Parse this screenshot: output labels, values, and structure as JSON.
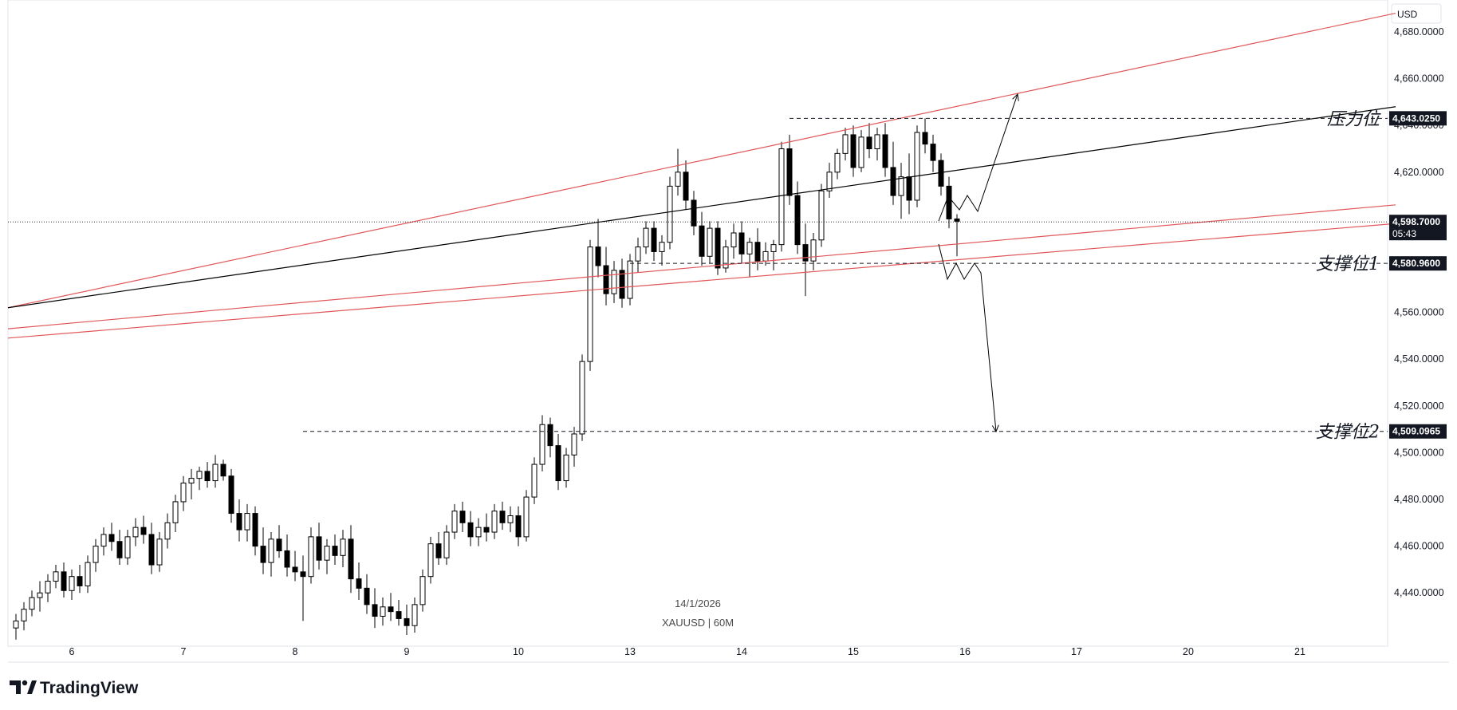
{
  "currency_label": "USD",
  "watermark": {
    "date": "14/1/2026",
    "symbol": "XAUUSD | 60M"
  },
  "brand": "TradingView",
  "chart_data": {
    "type": "candlestick",
    "symbol": "XAUUSD",
    "timeframe": "60M",
    "ylim": [
      4420,
      4690
    ],
    "y_ticks": [
      "4,440.0000",
      "4,460.0000",
      "4,480.0000",
      "4,500.0000",
      "4,520.0000",
      "4,540.0000",
      "4,560.0000",
      "4,580.0000",
      "4,600.0000",
      "4,620.0000",
      "4,640.0000",
      "4,660.0000",
      "4,680.0000"
    ],
    "y_tick_values": [
      4440,
      4460,
      4480,
      4500,
      4520,
      4540,
      4560,
      4580,
      4600,
      4620,
      4640,
      4660,
      4680
    ],
    "x_ticks": [
      "6",
      "7",
      "8",
      "9",
      "10",
      "13",
      "14",
      "15",
      "16",
      "17",
      "20",
      "21"
    ],
    "x_tick_index": [
      7,
      21,
      35,
      49,
      63,
      77,
      91,
      105,
      119,
      133,
      147,
      161
    ],
    "candles": [
      [
        4425,
        4431,
        4420,
        4428
      ],
      [
        4428,
        4436,
        4424,
        4433
      ],
      [
        4433,
        4441,
        4430,
        4438
      ],
      [
        4438,
        4445,
        4432,
        4440
      ],
      [
        4440,
        4448,
        4436,
        4445
      ],
      [
        4445,
        4452,
        4442,
        4449
      ],
      [
        4449,
        4453,
        4438,
        4441
      ],
      [
        4441,
        4450,
        4437,
        4447
      ],
      [
        4447,
        4452,
        4440,
        4443
      ],
      [
        4443,
        4456,
        4440,
        4453
      ],
      [
        4453,
        4463,
        4449,
        4460
      ],
      [
        4460,
        4468,
        4456,
        4465
      ],
      [
        4465,
        4470,
        4458,
        4462
      ],
      [
        4462,
        4467,
        4452,
        4455
      ],
      [
        4455,
        4467,
        4452,
        4464
      ],
      [
        4464,
        4472,
        4460,
        4468
      ],
      [
        4468,
        4473,
        4461,
        4465
      ],
      [
        4465,
        4470,
        4448,
        4452
      ],
      [
        4452,
        4466,
        4449,
        4463
      ],
      [
        4463,
        4474,
        4459,
        4470
      ],
      [
        4470,
        4482,
        4466,
        4479
      ],
      [
        4479,
        4490,
        4475,
        4487
      ],
      [
        4487,
        4493,
        4480,
        4489
      ],
      [
        4489,
        4494,
        4484,
        4492
      ],
      [
        4492,
        4496,
        4485,
        4488
      ],
      [
        4488,
        4499,
        4485,
        4495
      ],
      [
        4495,
        4497,
        4488,
        4490
      ],
      [
        4490,
        4493,
        4470,
        4474
      ],
      [
        4474,
        4480,
        4462,
        4467
      ],
      [
        4467,
        4478,
        4462,
        4474
      ],
      [
        4474,
        4477,
        4456,
        4460
      ],
      [
        4460,
        4468,
        4448,
        4453
      ],
      [
        4453,
        4466,
        4447,
        4463
      ],
      [
        4463,
        4469,
        4455,
        4458
      ],
      [
        4458,
        4465,
        4447,
        4451
      ],
      [
        4451,
        4458,
        4445,
        4449
      ],
      [
        4449,
        4456,
        4428,
        4447
      ],
      [
        4447,
        4468,
        4444,
        4464
      ],
      [
        4464,
        4470,
        4450,
        4454
      ],
      [
        4454,
        4463,
        4448,
        4460
      ],
      [
        4460,
        4465,
        4452,
        4456
      ],
      [
        4456,
        4467,
        4451,
        4463
      ],
      [
        4463,
        4469,
        4440,
        4446
      ],
      [
        4446,
        4453,
        4437,
        4442
      ],
      [
        4442,
        4448,
        4431,
        4435
      ],
      [
        4435,
        4442,
        4425,
        4430
      ],
      [
        4430,
        4438,
        4426,
        4434
      ],
      [
        4434,
        4440,
        4428,
        4432
      ],
      [
        4432,
        4437,
        4426,
        4429
      ],
      [
        4429,
        4435,
        4422,
        4426
      ],
      [
        4426,
        4438,
        4423,
        4435
      ],
      [
        4435,
        4450,
        4432,
        4447
      ],
      [
        4447,
        4464,
        4444,
        4461
      ],
      [
        4461,
        4466,
        4452,
        4455
      ],
      [
        4455,
        4469,
        4452,
        4466
      ],
      [
        4466,
        4478,
        4463,
        4475
      ],
      [
        4475,
        4479,
        4466,
        4470
      ],
      [
        4470,
        4475,
        4460,
        4464
      ],
      [
        4464,
        4472,
        4460,
        4468
      ],
      [
        4468,
        4474,
        4462,
        4466
      ],
      [
        4466,
        4478,
        4463,
        4475
      ],
      [
        4475,
        4479,
        4467,
        4470
      ],
      [
        4470,
        4477,
        4466,
        4473
      ],
      [
        4473,
        4477,
        4460,
        4464
      ],
      [
        4464,
        4484,
        4462,
        4481
      ],
      [
        4481,
        4498,
        4478,
        4495
      ],
      [
        4495,
        4516,
        4492,
        4512
      ],
      [
        4512,
        4515,
        4498,
        4503
      ],
      [
        4503,
        4508,
        4484,
        4488
      ],
      [
        4488,
        4502,
        4485,
        4499
      ],
      [
        4499,
        4511,
        4494,
        4508
      ],
      [
        4508,
        4542,
        4505,
        4539
      ],
      [
        4539,
        4591,
        4535,
        4588
      ],
      [
        4588,
        4600,
        4575,
        4580
      ],
      [
        4580,
        4588,
        4563,
        4568
      ],
      [
        4568,
        4582,
        4564,
        4578
      ],
      [
        4578,
        4583,
        4562,
        4566
      ],
      [
        4566,
        4585,
        4563,
        4582
      ],
      [
        4582,
        4592,
        4577,
        4588
      ],
      [
        4588,
        4599,
        4585,
        4596
      ],
      [
        4596,
        4599,
        4582,
        4586
      ],
      [
        4586,
        4593,
        4580,
        4590
      ],
      [
        4590,
        4618,
        4587,
        4614
      ],
      [
        4614,
        4630,
        4610,
        4620
      ],
      [
        4620,
        4625,
        4604,
        4608
      ],
      [
        4608,
        4612,
        4593,
        4597
      ],
      [
        4597,
        4603,
        4580,
        4584
      ],
      [
        4584,
        4599,
        4581,
        4596
      ],
      [
        4596,
        4599,
        4576,
        4579
      ],
      [
        4579,
        4591,
        4577,
        4588
      ],
      [
        4588,
        4598,
        4583,
        4594
      ],
      [
        4594,
        4599,
        4581,
        4585
      ],
      [
        4585,
        4592,
        4575,
        4590
      ],
      [
        4590,
        4596,
        4578,
        4582
      ],
      [
        4582,
        4590,
        4580,
        4586
      ],
      [
        4586,
        4591,
        4578,
        4589
      ],
      [
        4589,
        4633,
        4586,
        4630
      ],
      [
        4630,
        4636,
        4606,
        4610
      ],
      [
        4610,
        4616,
        4585,
        4589
      ],
      [
        4589,
        4598,
        4567,
        4582
      ],
      [
        4582,
        4594,
        4578,
        4591
      ],
      [
        4591,
        4615,
        4588,
        4612
      ],
      [
        4612,
        4624,
        4609,
        4620
      ],
      [
        4620,
        4630,
        4617,
        4628
      ],
      [
        4628,
        4639,
        4625,
        4636
      ],
      [
        4636,
        4640,
        4618,
        4622
      ],
      [
        4622,
        4638,
        4620,
        4635
      ],
      [
        4635,
        4641,
        4626,
        4630
      ],
      [
        4630,
        4639,
        4625,
        4636
      ],
      [
        4636,
        4641,
        4618,
        4622
      ],
      [
        4622,
        4633,
        4606,
        4610
      ],
      [
        4610,
        4624,
        4600,
        4618
      ],
      [
        4618,
        4628,
        4602,
        4608
      ],
      [
        4608,
        4640,
        4605,
        4637
      ],
      [
        4637,
        4643,
        4628,
        4632
      ],
      [
        4632,
        4636,
        4620,
        4625
      ],
      [
        4625,
        4628,
        4610,
        4614
      ],
      [
        4614,
        4618,
        4596,
        4600
      ],
      [
        4600,
        4602,
        4584,
        4599
      ]
    ]
  },
  "drawings": {
    "upper_channel": {
      "p1": [
        0,
        4562
      ],
      "p2": [
        172,
        4688
      ]
    },
    "mid_trendline": {
      "p1": [
        0,
        4562
      ],
      "p2": [
        172,
        4648
      ]
    },
    "lower_channel_a": {
      "p1": [
        0,
        4553
      ],
      "p2": [
        172,
        4606
      ]
    },
    "lower_channel_b": {
      "p1": [
        0,
        4549
      ],
      "p2": [
        172,
        4598
      ]
    },
    "resistance": {
      "value": 4643.025,
      "label": "压力位",
      "box": "4,643.0250",
      "from_index": 97
    },
    "support1": {
      "value": 4580.96,
      "label": "支撑位1",
      "box": "4,580.9600",
      "from_index": 77
    },
    "support2": {
      "value": 4509.0965,
      "label": "支撑位2",
      "box": "4,509.0965",
      "from_index": 36
    },
    "current_price": {
      "value": 4598.7,
      "box": "4,598.7000",
      "countdown": "05:43"
    }
  }
}
